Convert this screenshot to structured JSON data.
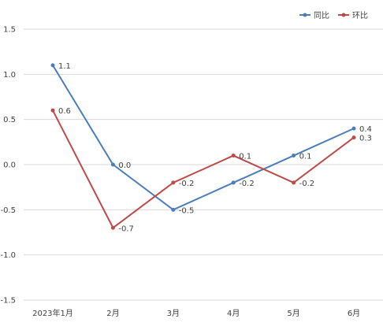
{
  "chart_data": {
    "type": "line",
    "categories": [
      "2023年1月",
      "2月",
      "3月",
      "4月",
      "5月",
      "6月"
    ],
    "ylim": [
      -1.5,
      1.5
    ],
    "yticks": [
      1.5,
      1.0,
      0.5,
      0.0,
      -0.5,
      -1.0,
      -1.5
    ],
    "ytick_labels": [
      "1.5",
      "1.0",
      "0.5",
      "0.0",
      "-0.5",
      "-1.0",
      "-1.5"
    ],
    "grid": true,
    "legend_position": "top-right",
    "series": [
      {
        "name": "同比",
        "color": "#4a7ebb",
        "values": [
          1.1,
          0.0,
          -0.5,
          -0.2,
          0.1,
          0.4
        ],
        "labels": [
          "1.1",
          "0.0",
          "-0.5",
          "-0.2",
          "0.1",
          "0.4"
        ]
      },
      {
        "name": "环比",
        "color": "#be4b48",
        "values": [
          0.6,
          -0.7,
          -0.2,
          0.1,
          -0.2,
          0.3
        ],
        "labels": [
          "0.6",
          "-0.7",
          "-0.2",
          "0.1",
          "-0.2",
          "0.3"
        ]
      }
    ]
  }
}
